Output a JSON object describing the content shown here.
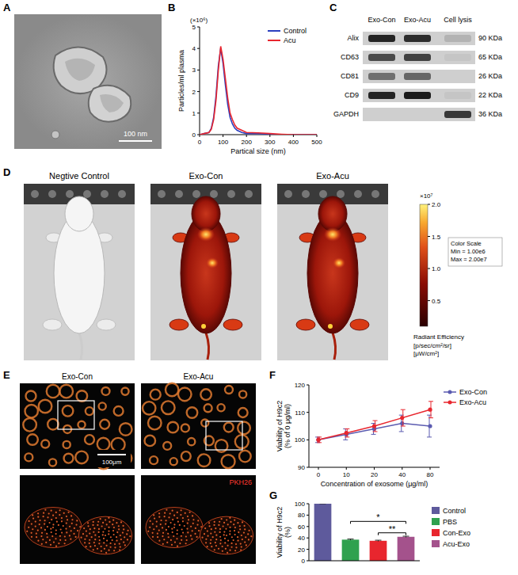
{
  "chart_data": [
    {
      "letter": "B",
      "type": "line",
      "y_label": "Particles/ml plasma",
      "y_multiplier": "(×10⁶)",
      "x_label": "Partical size (nm)",
      "x": [
        0,
        20,
        40,
        50,
        60,
        70,
        80,
        90,
        100,
        110,
        120,
        130,
        140,
        150,
        160,
        180,
        200,
        250,
        300,
        350,
        400,
        450,
        500
      ],
      "series": [
        {
          "name": "Control",
          "color": "#2b3fbf",
          "values": [
            0,
            0.05,
            0.1,
            0.3,
            0.8,
            1.8,
            3.2,
            4.0,
            3.3,
            2.3,
            1.4,
            0.8,
            0.5,
            0.3,
            0.2,
            0.1,
            0.05,
            0.05,
            0.02,
            0,
            0,
            0,
            0
          ]
        },
        {
          "name": "Acu",
          "color": "#e8262e",
          "values": [
            0,
            0.05,
            0.1,
            0.25,
            0.7,
            1.6,
            3.0,
            4.1,
            3.5,
            2.6,
            1.7,
            1.0,
            0.7,
            0.45,
            0.3,
            0.2,
            0.1,
            0.08,
            0.05,
            0.02,
            0,
            0,
            0
          ]
        }
      ],
      "xlim": [
        0,
        500
      ],
      "xticks": [
        0,
        100,
        200,
        300,
        400,
        500
      ],
      "ylim": [
        0,
        5
      ],
      "yticks": [
        0,
        1,
        2,
        3,
        4,
        5
      ],
      "legend": "top-right"
    },
    {
      "letter": "F",
      "type": "line",
      "y_label": "Viability of H9c2 (% of 0 μg/ml)",
      "x_label": "Concentration of exosome (μg/ml)",
      "categories": [
        "0",
        "10",
        "20",
        "40",
        "80"
      ],
      "series": [
        {
          "name": "Exo-Con",
          "color": "#5b5bb0",
          "marker": "circle",
          "values": [
            100,
            102,
            104,
            106,
            105
          ],
          "errors": [
            1,
            2,
            2,
            3,
            4
          ]
        },
        {
          "name": "Exo-Acu",
          "color": "#e8262e",
          "marker": "circle",
          "values": [
            100,
            102.5,
            105,
            108,
            111
          ],
          "errors": [
            1,
            1.5,
            2,
            3,
            3
          ]
        }
      ],
      "ylim": [
        90,
        120
      ],
      "yticks": [
        90,
        100,
        110,
        120
      ],
      "legend": "right"
    },
    {
      "letter": "G",
      "type": "bar",
      "y_label": "Viability of H9c2 (%)",
      "categories": [
        "Control",
        "PBS",
        "Con-Exo",
        "Acu-Exo"
      ],
      "values": [
        100,
        37,
        35,
        42
      ],
      "errors": [
        0,
        1,
        1,
        1
      ],
      "colors": [
        "#5e5a9c",
        "#2fa14f",
        "#e8262e",
        "#a4528c"
      ],
      "ylim": [
        0,
        100
      ],
      "yticks": [
        0,
        20,
        40,
        60,
        80,
        100
      ],
      "tick_labels": "y",
      "legend": "right",
      "annotations": [
        {
          "text": "*",
          "between": [
            "PBS",
            "Acu-Exo"
          ]
        },
        {
          "text": "**",
          "between": [
            "Con-Exo",
            "Acu-Exo"
          ]
        }
      ]
    }
  ],
  "panels": {
    "A": {
      "letter": "A",
      "scale_bar": "100 nm"
    },
    "C": {
      "letter": "C",
      "lanes": [
        "Exo-Con",
        "Exo-Acu",
        "Cell lysis"
      ],
      "bands": [
        {
          "label": "Alix",
          "size": "90 KDa",
          "intensity": [
            0.9,
            0.85,
            0.15
          ]
        },
        {
          "label": "CD63",
          "size": "65 KDa",
          "intensity": [
            0.7,
            0.75,
            0.05
          ]
        },
        {
          "label": "CD81",
          "size": "26 KDa",
          "intensity": [
            0.5,
            0.55,
            0
          ]
        },
        {
          "label": "CD9",
          "size": "22 KDa",
          "intensity": [
            0.9,
            0.95,
            0.05
          ]
        },
        {
          "label": "GAPDH",
          "size": "36 KDa",
          "intensity": [
            0,
            0,
            0.8
          ]
        }
      ]
    },
    "D": {
      "letter": "D",
      "images": [
        "Negtive Control",
        "Exo-Con",
        "Exo-Acu"
      ],
      "fluorescence": [
        false,
        true,
        true
      ],
      "colorbar": {
        "title": "Radiant Efficiency",
        "units": [
          "[p/sec/cm²/sr]",
          "[μW/cm²]"
        ],
        "multiplier": "×10⁷",
        "range": [
          0.1,
          2.0
        ],
        "ticks": [
          0.5,
          {
            "value": 1,
            "label": "1.0"
          },
          1.5,
          {
            "value": 2,
            "label": "2.0"
          }
        ],
        "scale_text": [
          "Color Scale",
          "Min = 1.00e6",
          "Max = 2.00e7"
        ]
      }
    },
    "E": {
      "letter": "E",
      "images": [
        "Exo-Con",
        "Exo-Acu"
      ],
      "scale_bar": "100μm",
      "stain": "PKH26"
    }
  }
}
